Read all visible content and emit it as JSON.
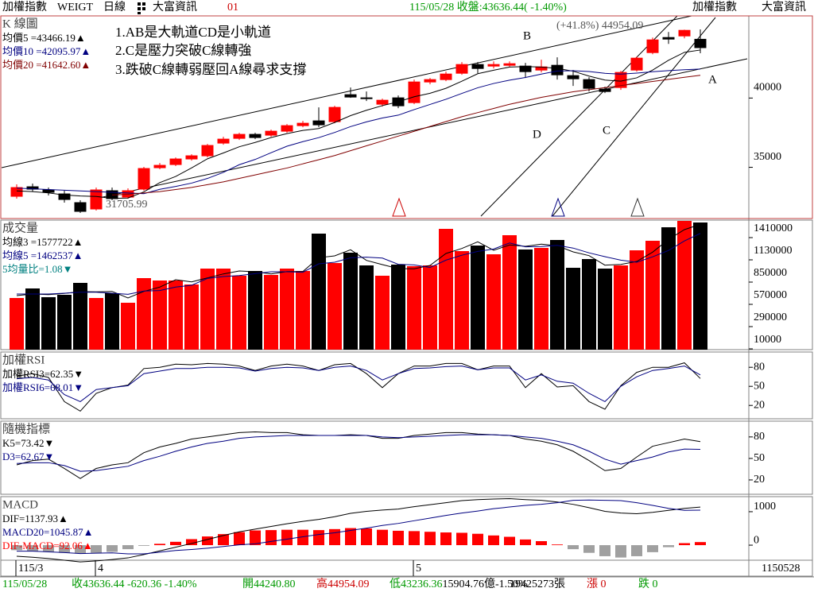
{
  "header": {
    "title": "加權指數",
    "code": "WEIGT",
    "period": "日線",
    "source": "大富資訊",
    "window": "01",
    "quote": "115/05/28 收盤:43636.44( -1.40%)",
    "right_title": "加權指數",
    "right_source": "大富資訊"
  },
  "status_bar": {
    "date": "115/05/28",
    "close": "收43636.44 -620.36 -1.40%",
    "open": "開44240.80",
    "high": "高44954.09",
    "low": "低43236.36",
    "amount": "15904.76億-1.50%",
    "volume": "19425273張",
    "up": "漲 0",
    "down": "跌 0"
  },
  "chart_data": [
    {
      "type": "candlestick",
      "title": "K 線圖",
      "categories": [
        "115/3",
        null,
        null,
        null,
        null,
        "4",
        null,
        null,
        null,
        null,
        null,
        null,
        null,
        null,
        null,
        null,
        null,
        null,
        null,
        null,
        null,
        null,
        null,
        null,
        null,
        "5",
        null,
        null,
        null,
        null,
        null,
        null,
        null,
        null,
        null,
        null,
        null,
        null,
        null,
        null,
        null,
        null,
        null,
        null
      ],
      "x_end_label": "1150528",
      "open": [
        32908,
        33596,
        33367,
        33080,
        32450,
        31992,
        33310,
        32851,
        33424,
        34971,
        35200,
        35602,
        35831,
        36748,
        37091,
        37378,
        37321,
        37607,
        38008,
        38352,
        38295,
        40243,
        40014,
        39555,
        40014,
        39670,
        41160,
        41332,
        41790,
        42420,
        42306,
        42363,
        42306,
        42019,
        42363,
        41618,
        41332,
        40644,
        40759,
        42019,
        43280,
        44368,
        44483,
        44240.8
      ],
      "high": [
        33768,
        33825,
        33539,
        33310,
        32622,
        33539,
        33539,
        33481,
        35029,
        35315,
        35716,
        35945,
        36690,
        37206,
        37492,
        37492,
        37722,
        38123,
        38352,
        39326,
        39441,
        40759,
        40472,
        39956,
        40186,
        41332,
        41446,
        41905,
        42592,
        42592,
        42649,
        42649,
        42535,
        42764,
        42936,
        42019,
        41503,
        40816,
        41962,
        42993,
        44368,
        44770,
        44930,
        44954.09
      ],
      "low": [
        32737,
        33252,
        32966,
        32450,
        31705.99,
        31877,
        32622,
        32737,
        33310,
        34857,
        35086,
        35487,
        35716,
        36633,
        36977,
        37034,
        37206,
        37492,
        37894,
        37894,
        38180,
        40014,
        39784,
        39383,
        39269,
        39555,
        40988,
        41217,
        41675,
        41790,
        42134,
        42248,
        41446,
        41847,
        41332,
        40873,
        40472,
        40357,
        40587,
        41905,
        43165,
        43910,
        44311,
        43236.36
      ],
      "close": [
        33539,
        33424,
        33195,
        32679,
        31820,
        33367,
        32737,
        33310,
        34914,
        35143,
        35602,
        35831,
        36576,
        37034,
        37378,
        37149,
        37607,
        38008,
        38180,
        38065,
        39326,
        40071,
        39956,
        39842,
        39441,
        41160,
        41332,
        41733,
        42420,
        42134,
        42420,
        42478,
        41905,
        42248,
        41675,
        41389,
        40701,
        40472,
        41847,
        42879,
        44197,
        44254,
        44884,
        43636.44
      ],
      "up_color": "#ff0000",
      "down_color": "#000000",
      "series": [
        {
          "name": "均價5 =43466.19▲",
          "color": "#000000",
          "values": [
            33300,
            33250,
            33150,
            33000,
            32931,
            32897,
            32760,
            32783,
            33230,
            33894,
            34341,
            34960,
            35613,
            36037,
            36484,
            36794,
            37149,
            37435,
            37664,
            37802,
            38237,
            38730,
            39120,
            39452,
            39727,
            40094,
            40346,
            40702,
            41217,
            41756,
            42008,
            42237,
            42271,
            42237,
            42145,
            41939,
            41584,
            41297,
            41217,
            41458,
            42019,
            42730,
            43300,
            43466.19
          ]
        },
        {
          "name": "均價10 =42095.97▲",
          "color": "#000080",
          "values": [
            33500,
            33450,
            33400,
            33350,
            33300,
            33250,
            33200,
            33150,
            33100,
            33412,
            33619,
            33860,
            34198,
            34634,
            35189,
            35568,
            36055,
            36524,
            36851,
            37143,
            37516,
            37940,
            38278,
            38558,
            38765,
            39166,
            39538,
            39911,
            40335,
            40742,
            41051,
            41292,
            41487,
            41727,
            41951,
            41974,
            41911,
            41784,
            41727,
            41802,
            41900,
            41980,
            42040,
            42095.97
          ]
        },
        {
          "name": "均價20 =41642.60▲",
          "color": "#800000",
          "values": [
            null,
            null,
            null,
            null,
            null,
            null,
            33000,
            33050,
            33150,
            33250,
            33400,
            33550,
            33750,
            33950,
            34200,
            34450,
            34700,
            34950,
            35250,
            35550,
            35850,
            36200,
            36550,
            36900,
            37250,
            37600,
            37950,
            38300,
            38650,
            38950,
            39250,
            39550,
            39800,
            40050,
            40250,
            40450,
            40600,
            40750,
            40900,
            41050,
            41200,
            41350,
            41500,
            41642.6
          ]
        }
      ],
      "annotations": [
        "1.AB是大軌道CD是小軌道",
        "2.C是壓力突破C線轉強",
        "3.跌破C線轉弱壓回A線尋求支撐",
        "B",
        "A",
        "C",
        "D",
        "(+41.8%) 44954.09",
        "31705.99"
      ],
      "ylim": [
        31304,
        45929
      ],
      "yticks": [
        35000,
        40000
      ]
    },
    {
      "type": "bar",
      "title": "成交量",
      "values": [
        650000,
        770000,
        660000,
        690000,
        840000,
        650000,
        710000,
        590000,
        900000,
        870000,
        870000,
        820000,
        1020000,
        1020000,
        930000,
        990000,
        940000,
        1020000,
        990000,
        1460000,
        1090000,
        1220000,
        1060000,
        930000,
        1070000,
        1050000,
        1060000,
        1520000,
        1240000,
        1310000,
        1200000,
        1440000,
        1260000,
        1280000,
        1380000,
        1030000,
        1140000,
        1020000,
        1060000,
        1250000,
        1370000,
        1540000,
        1620000,
        1600000
      ],
      "up_color": "#ff0000",
      "down_color": "#000000",
      "series": [
        {
          "name": "均線3 =1577722▲",
          "color": "#000000",
          "values": [
            680000,
            700000,
            693000,
            707000,
            730000,
            727000,
            733000,
            650000,
            733000,
            787000,
            880000,
            853000,
            903000,
            953000,
            990000,
            980000,
            953000,
            983000,
            983000,
            1157000,
            1180000,
            1257000,
            1123000,
            1070000,
            1020000,
            1017000,
            1060000,
            1210000,
            1273000,
            1357000,
            1250000,
            1317000,
            1300000,
            1327000,
            1307000,
            1230000,
            1183000,
            1063000,
            1073000,
            1110000,
            1227000,
            1387000,
            1510000,
            1577722
          ]
        },
        {
          "name": "均線5 =1462537▲",
          "color": "#000080",
          "values": [
            700000,
            700000,
            700000,
            710000,
            722000,
            722000,
            710000,
            696000,
            738000,
            744000,
            788000,
            810000,
            896000,
            920000,
            932000,
            956000,
            980000,
            980000,
            974000,
            1080000,
            1100000,
            1156000,
            1164000,
            1152000,
            1074000,
            1066000,
            1034000,
            1126000,
            1188000,
            1236000,
            1266000,
            1342000,
            1294000,
            1298000,
            1312000,
            1278000,
            1218000,
            1170000,
            1126000,
            1100000,
            1168000,
            1248000,
            1368000,
            1462537
          ]
        }
      ],
      "note": "5均量比=1.08▼",
      "note_color": "#008080",
      "ylim": [
        0,
        1630000
      ],
      "yticks": [
        10000,
        290000,
        570000,
        850000,
        1130000,
        1410000
      ]
    },
    {
      "type": "line",
      "title": "加權RSI",
      "series": [
        {
          "name": "加權RSI3=62.35▼",
          "color": "#000000",
          "values": [
            66,
            70,
            64,
            26,
            11,
            39,
            48,
            52,
            78,
            80,
            85,
            84,
            86,
            85,
            82,
            75,
            82,
            85,
            82,
            75,
            84,
            86,
            70,
            48,
            70,
            82,
            82,
            86,
            86,
            76,
            82,
            82,
            48,
            70,
            49,
            51,
            26,
            14,
            51,
            72,
            80,
            80,
            87,
            62.35
          ]
        },
        {
          "name": "加權RSI6=68.01▼",
          "color": "#000080",
          "values": [
            62,
            64,
            60,
            37,
            26,
            45,
            48,
            51,
            70,
            74,
            78,
            78,
            80,
            80,
            79,
            74,
            78,
            80,
            79,
            75,
            80,
            82,
            75,
            60,
            70,
            78,
            79,
            81,
            82,
            76,
            79,
            79,
            60,
            68,
            58,
            55,
            39,
            26,
            50,
            65,
            75,
            78,
            82,
            68.01
          ]
        }
      ],
      "ylim": [
        -1,
        104
      ],
      "yticks": [
        20,
        50,
        80
      ]
    },
    {
      "type": "line",
      "title": "隨機指標",
      "series": [
        {
          "name": "K5=73.42▼",
          "color": "#000000",
          "values": [
            41,
            47,
            49,
            36,
            22,
            36,
            41,
            44,
            58,
            66,
            71,
            77,
            80,
            83,
            86,
            87,
            86,
            86,
            83,
            82,
            82,
            83,
            82,
            78,
            78,
            82,
            84,
            86,
            86,
            84,
            83,
            82,
            77,
            74,
            69,
            60,
            47,
            33,
            36,
            52,
            67,
            72,
            77,
            73.42
          ]
        },
        {
          "name": "D3=62.67▼",
          "color": "#000080",
          "values": [
            43,
            44,
            44,
            40,
            32,
            33,
            36,
            39,
            47,
            53,
            60,
            66,
            71,
            74,
            78,
            80,
            81,
            82,
            82,
            82,
            82,
            82,
            82,
            80,
            79,
            80,
            81,
            82,
            83,
            83,
            83,
            82,
            80,
            78,
            74,
            69,
            60,
            49,
            42,
            47,
            52,
            59,
            63,
            62.67
          ]
        }
      ],
      "ylim": [
        0,
        102
      ],
      "yticks": [
        20,
        50,
        80
      ]
    },
    {
      "type": "bar",
      "title": "MACD",
      "series": [
        {
          "name": "DIF=1137.93▲",
          "color": "#000000",
          "values": [
            -330,
            -360,
            -400,
            -450,
            -500,
            -470,
            -430,
            -380,
            -280,
            -170,
            -60,
            50,
            170,
            290,
            400,
            480,
            560,
            640,
            710,
            770,
            850,
            950,
            1010,
            1050,
            1080,
            1150,
            1210,
            1270,
            1330,
            1360,
            1380,
            1390,
            1360,
            1340,
            1290,
            1220,
            1120,
            1010,
            960,
            940,
            980,
            1040,
            1100,
            1137.93
          ]
        },
        {
          "name": "MACD20=1045.87▲",
          "color": "#000080",
          "values": [
            -180,
            -180,
            -200,
            -220,
            -250,
            -240,
            -230,
            -260,
            -260,
            -210,
            -160,
            -130,
            -90,
            -40,
            10,
            40,
            110,
            180,
            250,
            320,
            370,
            440,
            510,
            590,
            650,
            730,
            810,
            890,
            960,
            1020,
            1090,
            1140,
            1190,
            1220,
            1270,
            1340,
            1350,
            1340,
            1330,
            1270,
            1190,
            1100,
            1040,
            1045.87
          ]
        }
      ],
      "name": "DIF-MACD=92.06▲",
      "values": [
        -150,
        -180,
        -200,
        -230,
        -250,
        -230,
        -200,
        -120,
        -20,
        40,
        100,
        180,
        260,
        330,
        390,
        440,
        450,
        460,
        460,
        450,
        480,
        510,
        500,
        460,
        430,
        420,
        400,
        380,
        370,
        340,
        290,
        250,
        170,
        120,
        20,
        -120,
        -230,
        -330,
        -370,
        -330,
        -210,
        -60,
        60,
        92.06
      ],
      "positive_color": "#ff0000",
      "negative_color": "#a0a0a0",
      "ylim": [
        -450,
        1450
      ],
      "yticks": [
        0,
        1000
      ]
    }
  ]
}
